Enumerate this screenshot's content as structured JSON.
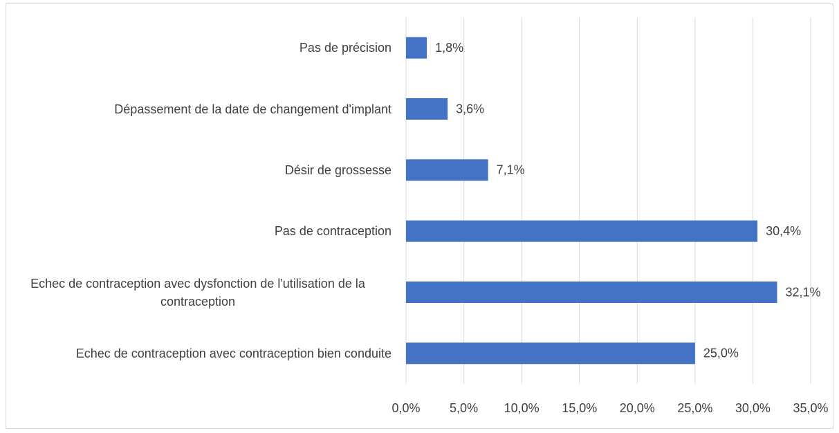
{
  "chart_data": {
    "type": "barh",
    "categories": [
      "Pas de précision",
      "Dépassement de la date de changement d'implant",
      "Désir de grossesse",
      "Pas de contraception",
      "Echec de contraception avec dysfonction de l'utilisation de la contraception",
      "Echec de contraception avec contraception bien conduite"
    ],
    "values": [
      1.8,
      3.6,
      7.1,
      30.4,
      32.1,
      25.0
    ],
    "value_labels": [
      "1,8%",
      "3,6%",
      "7,1%",
      "30,4%",
      "32,1%",
      "25,0%"
    ],
    "color": "#4472c4",
    "xlim": [
      0,
      35
    ],
    "xticks": [
      {
        "value": 0,
        "label": "0,0%"
      },
      {
        "value": 5,
        "label": "5,0%"
      },
      {
        "value": 10,
        "label": "10,0%"
      },
      {
        "value": 15,
        "label": "15,0%"
      },
      {
        "value": 20,
        "label": "20,0%"
      },
      {
        "value": 25,
        "label": "25,0%"
      },
      {
        "value": 30,
        "label": "30,0%"
      },
      {
        "value": 35,
        "label": "35,0%"
      }
    ],
    "grid": true
  }
}
